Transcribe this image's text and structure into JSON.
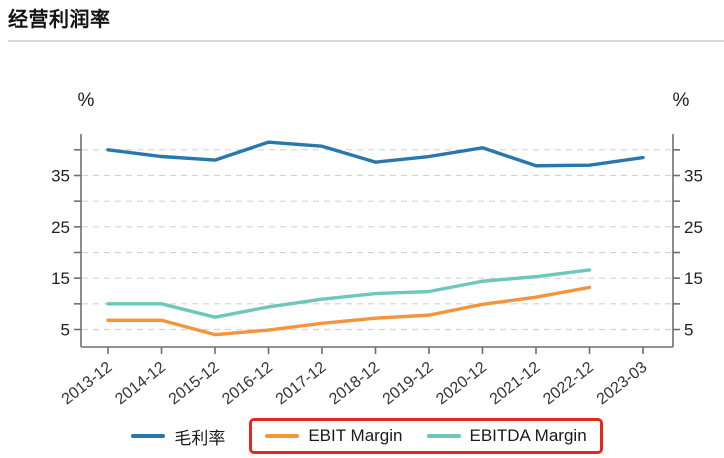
{
  "header": {
    "title": "经营利润率"
  },
  "axis": {
    "unit_left": "%",
    "unit_right": "%"
  },
  "chart_data": {
    "type": "line",
    "title": "经营利润率",
    "categories": [
      "2013-12",
      "2014-12",
      "2015-12",
      "2016-12",
      "2017-12",
      "2018-12",
      "2019-12",
      "2020-12",
      "2021-12",
      "2022-12",
      "2023-03"
    ],
    "series": [
      {
        "name": "毛利率",
        "color": "#2878ad",
        "values": [
          40.0,
          38.7,
          38.0,
          41.5,
          40.7,
          37.6,
          38.7,
          40.4,
          36.9,
          37.0,
          38.5
        ]
      },
      {
        "name": "EBIT Margin",
        "color": "#f3953d",
        "values": [
          6.8,
          6.8,
          4.0,
          4.9,
          6.2,
          7.2,
          7.8,
          9.9,
          11.3,
          13.2,
          null
        ]
      },
      {
        "name": "EBITDA Margin",
        "color": "#6ec6bc",
        "values": [
          10.0,
          10.0,
          7.4,
          9.4,
          10.9,
          12.0,
          12.4,
          14.4,
          15.3,
          16.6,
          null
        ]
      }
    ],
    "ylabel": "%",
    "xlabel": "",
    "ylim": [
      1.5,
      43.5
    ],
    "y_ticks_labeled": [
      5,
      15,
      25,
      35
    ],
    "y_ticks_minor": [
      10,
      20,
      30,
      40
    ],
    "grid": "horizontal-dashed",
    "legend_position": "bottom",
    "annotations": {
      "highlight_box": {
        "around": [
          "EBIT Margin",
          "EBITDA Margin"
        ],
        "color": "#e7271c"
      }
    }
  }
}
